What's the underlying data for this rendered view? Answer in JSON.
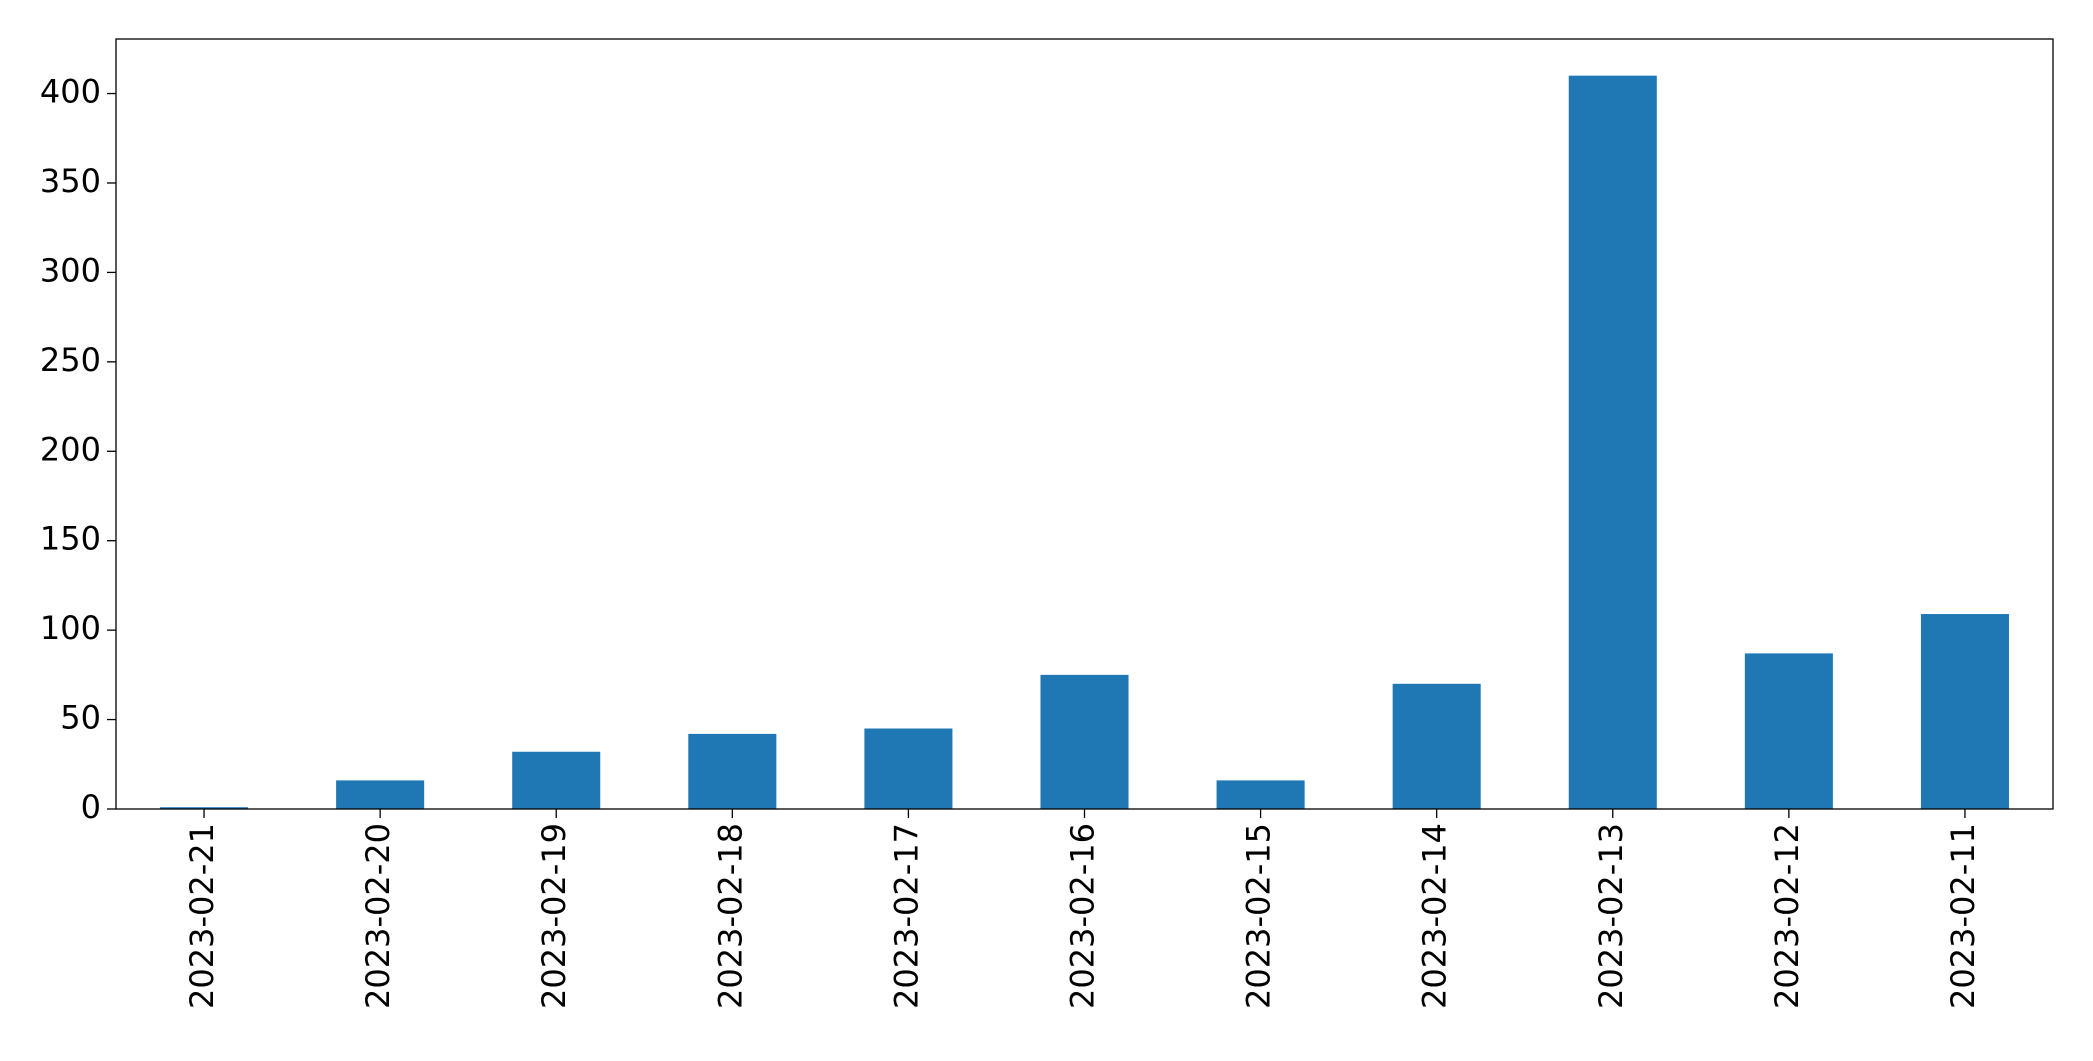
{
  "chart_data": {
    "type": "bar",
    "categories": [
      "2023-02-21",
      "2023-02-20",
      "2023-02-19",
      "2023-02-18",
      "2023-02-17",
      "2023-02-16",
      "2023-02-15",
      "2023-02-14",
      "2023-02-13",
      "2023-02-12",
      "2023-02-11"
    ],
    "values": [
      1,
      16,
      32,
      42,
      45,
      75,
      16,
      70,
      410,
      87,
      109
    ],
    "color": "#1f77b4",
    "ylim": [
      0,
      430.5
    ],
    "yticks": [
      0,
      50,
      100,
      150,
      200,
      250,
      300,
      350,
      400
    ],
    "grid": false
  }
}
